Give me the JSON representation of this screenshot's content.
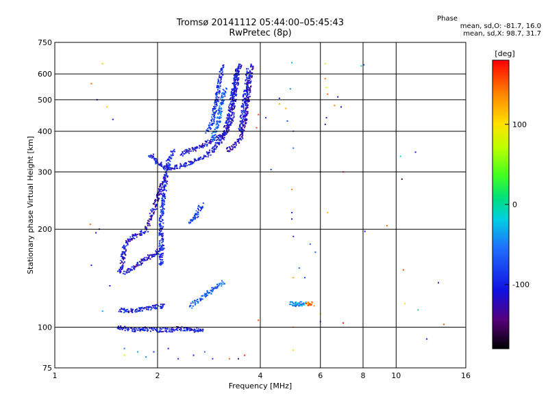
{
  "chart_data": {
    "type": "scatter",
    "title": "Tromsø 20141112 05:44:00–05:45:43",
    "subtitle": "RwPretec (8p)",
    "xlabel": "Frequency [MHz]",
    "ylabel": "Stationary phase Virtual Height [km]",
    "x_scale": "log",
    "y_scale": "log",
    "xlim": [
      1,
      16
    ],
    "ylim": [
      75,
      750
    ],
    "x_ticks": [
      1,
      2,
      4,
      6,
      8,
      10,
      16
    ],
    "x_tick_labels": [
      "1",
      "2",
      "4",
      "6",
      "8",
      "10",
      "16"
    ],
    "y_ticks": [
      75,
      100,
      200,
      300,
      400,
      500,
      600,
      750
    ],
    "y_tick_labels": [
      "75",
      "100",
      "200",
      "300",
      "400",
      "500",
      "600",
      "750"
    ],
    "grid": true,
    "phase_title": "Phase",
    "phase_stats": [
      "mean, sd,O: -81.7, 16.0",
      "mean, sd,X:  98.7, 31.7"
    ],
    "colorbar": {
      "label": "[deg]",
      "range": [
        -180,
        180
      ],
      "ticks": [
        100,
        0,
        -100
      ],
      "tick_labels": [
        "100",
        "0",
        "-100"
      ]
    },
    "colors": {
      "dominant": "#1414d8",
      "secondary": "#2a6cff",
      "cyan": "#00bfe0",
      "sparse": [
        "#ff9900",
        "#ffcc00",
        "#ff3300",
        "#00c8ff",
        "#66ff33",
        "#aa0088"
      ]
    },
    "traces": [
      {
        "name": "",
        "phase": -105,
        "points": [
          [
            1.52,
            100
          ],
          [
            1.6,
            99
          ],
          [
            1.7,
            98
          ],
          [
            1.8,
            99
          ],
          [
            1.9,
            98
          ],
          [
            2.0,
            98
          ],
          [
            2.1,
            98
          ],
          [
            2.2,
            98
          ],
          [
            2.3,
            99
          ],
          [
            2.5,
            98
          ],
          [
            2.6,
            98
          ],
          [
            2.75,
            98
          ]
        ]
      },
      {
        "name": "",
        "phase": -100,
        "points": [
          [
            1.55,
            113
          ],
          [
            1.65,
            112
          ],
          [
            1.75,
            113
          ],
          [
            1.85,
            114
          ],
          [
            1.95,
            115
          ],
          [
            2.05,
            116
          ],
          [
            2.1,
            116
          ]
        ]
      },
      {
        "name": "",
        "phase": -65,
        "points": [
          [
            2.5,
            116
          ],
          [
            2.6,
            120
          ],
          [
            2.7,
            123
          ],
          [
            2.8,
            127
          ],
          [
            3.0,
            134
          ],
          [
            3.15,
            138
          ]
        ]
      },
      {
        "name": "",
        "phase": -110,
        "points": [
          [
            1.55,
            147
          ],
          [
            1.58,
            160
          ],
          [
            1.6,
            175
          ],
          [
            1.65,
            185
          ],
          [
            1.72,
            192
          ],
          [
            1.8,
            195
          ],
          [
            1.87,
            197
          ]
        ]
      },
      {
        "name": "",
        "phase": -110,
        "points": [
          [
            1.6,
            147
          ],
          [
            1.7,
            153
          ],
          [
            1.8,
            160
          ],
          [
            1.9,
            165
          ],
          [
            2.0,
            170
          ],
          [
            2.08,
            177
          ]
        ]
      },
      {
        "name": "",
        "phase": -95,
        "points": [
          [
            2.05,
            155
          ],
          [
            2.05,
            180
          ],
          [
            2.05,
            210
          ],
          [
            2.07,
            240
          ],
          [
            2.1,
            270
          ],
          [
            2.12,
            300
          ],
          [
            2.15,
            320
          ],
          [
            2.2,
            340
          ],
          [
            2.25,
            350
          ]
        ]
      },
      {
        "name": "",
        "phase": -115,
        "points": [
          [
            1.85,
            200
          ],
          [
            1.9,
            215
          ],
          [
            1.95,
            230
          ],
          [
            2.0,
            250
          ],
          [
            2.05,
            270
          ],
          [
            2.1,
            290
          ]
        ]
      },
      {
        "name": "",
        "phase": -75,
        "points": [
          [
            2.5,
            210
          ],
          [
            2.55,
            215
          ],
          [
            2.6,
            220
          ],
          [
            2.65,
            230
          ],
          [
            2.7,
            240
          ]
        ]
      },
      {
        "name": "",
        "phase": -100,
        "points": [
          [
            1.9,
            340
          ],
          [
            1.95,
            330
          ],
          [
            2.0,
            320
          ],
          [
            2.05,
            315
          ],
          [
            2.1,
            310
          ],
          [
            2.2,
            308
          ],
          [
            2.3,
            312
          ],
          [
            2.45,
            318
          ],
          [
            2.6,
            325
          ],
          [
            2.75,
            335
          ],
          [
            2.9,
            350
          ],
          [
            3.05,
            370
          ],
          [
            3.15,
            400
          ],
          [
            3.25,
            450
          ],
          [
            3.3,
            500
          ],
          [
            3.35,
            550
          ],
          [
            3.4,
            600
          ],
          [
            3.45,
            640
          ]
        ]
      },
      {
        "name": "",
        "phase": -110,
        "points": [
          [
            2.35,
            340
          ],
          [
            2.5,
            350
          ],
          [
            2.7,
            360
          ],
          [
            2.9,
            375
          ],
          [
            3.1,
            390
          ],
          [
            3.2,
            400
          ],
          [
            3.3,
            440
          ],
          [
            3.35,
            500
          ],
          [
            3.4,
            560
          ],
          [
            3.45,
            620
          ],
          [
            3.5,
            645
          ]
        ]
      },
      {
        "name": "",
        "phase": -90,
        "points": [
          [
            2.8,
            400
          ],
          [
            2.9,
            430
          ],
          [
            2.95,
            470
          ],
          [
            3.0,
            520
          ],
          [
            3.05,
            580
          ],
          [
            3.1,
            640
          ]
        ]
      },
      {
        "name": "",
        "phase": -60,
        "points": [
          [
            2.9,
            380
          ],
          [
            3.0,
            420
          ],
          [
            3.05,
            460
          ],
          [
            3.1,
            500
          ],
          [
            3.15,
            540
          ]
        ]
      },
      {
        "name": "",
        "phase": -120,
        "points": [
          [
            3.2,
            350
          ],
          [
            3.35,
            360
          ],
          [
            3.5,
            380
          ],
          [
            3.6,
            420
          ],
          [
            3.65,
            480
          ],
          [
            3.7,
            540
          ],
          [
            3.75,
            600
          ],
          [
            3.8,
            645
          ]
        ]
      },
      {
        "name": "",
        "phase": -100,
        "points": [
          [
            3.5,
            400
          ],
          [
            3.55,
            450
          ],
          [
            3.6,
            500
          ],
          [
            3.65,
            560
          ],
          [
            3.7,
            620
          ]
        ]
      },
      {
        "name": "",
        "phase": -40,
        "points": [
          [
            4.9,
            118
          ],
          [
            5.0,
            118
          ],
          [
            5.1,
            118
          ],
          [
            5.2,
            117
          ],
          [
            5.3,
            118
          ],
          [
            5.45,
            118
          ]
        ]
      },
      {
        "name": "",
        "phase": 140,
        "points": [
          [
            5.5,
            118
          ],
          [
            5.6,
            118
          ],
          [
            5.7,
            117
          ]
        ]
      }
    ],
    "scattered_points": [
      [
        1.28,
        560,
        150
      ],
      [
        1.33,
        500,
        -130
      ],
      [
        1.38,
        645,
        110
      ],
      [
        1.42,
        475,
        110
      ],
      [
        1.48,
        435,
        -100
      ],
      [
        1.27,
        207,
        150
      ],
      [
        1.32,
        195,
        -110
      ],
      [
        1.35,
        200,
        -150
      ],
      [
        1.28,
        155,
        -100
      ],
      [
        1.45,
        134,
        -100
      ],
      [
        1.38,
        112,
        -40
      ],
      [
        1.6,
        86,
        -50
      ],
      [
        1.6,
        82,
        80
      ],
      [
        1.75,
        84,
        -40
      ],
      [
        1.85,
        81,
        -40
      ],
      [
        1.95,
        84,
        -90
      ],
      [
        2.15,
        86,
        -100
      ],
      [
        2.3,
        80,
        -100
      ],
      [
        2.55,
        82,
        -100
      ],
      [
        2.75,
        84,
        -60
      ],
      [
        2.9,
        80,
        -90
      ],
      [
        3.25,
        80,
        150
      ],
      [
        3.45,
        80,
        -130
      ],
      [
        3.6,
        82,
        170
      ],
      [
        3.95,
        105,
        160
      ],
      [
        3.9,
        410,
        160
      ],
      [
        3.95,
        450,
        160
      ],
      [
        4.15,
        440,
        -90
      ],
      [
        4.3,
        305,
        -80
      ],
      [
        4.55,
        505,
        -100
      ],
      [
        4.75,
        470,
        120
      ],
      [
        4.8,
        430,
        -70
      ],
      [
        4.95,
        650,
        -30
      ],
      [
        4.9,
        540,
        -40
      ],
      [
        5.0,
        400,
        -50
      ],
      [
        5.0,
        355,
        -60
      ],
      [
        4.95,
        265,
        140
      ],
      [
        4.95,
        225,
        -100
      ],
      [
        4.95,
        215,
        -120
      ],
      [
        5.0,
        190,
        -100
      ],
      [
        5.0,
        142,
        120
      ],
      [
        5.0,
        100,
        140
      ],
      [
        5.0,
        85,
        100
      ],
      [
        4.55,
        485,
        120
      ],
      [
        5.2,
        152,
        -60
      ],
      [
        5.4,
        142,
        -80
      ],
      [
        5.6,
        180,
        -60
      ],
      [
        5.8,
        170,
        -70
      ],
      [
        6.0,
        104,
        -70
      ],
      [
        6.0,
        110,
        80
      ],
      [
        6.0,
        300,
        -60
      ],
      [
        6.2,
        645,
        100
      ],
      [
        6.2,
        580,
        140
      ],
      [
        6.25,
        545,
        100
      ],
      [
        6.3,
        520,
        150
      ],
      [
        6.25,
        440,
        -120
      ],
      [
        6.2,
        420,
        -130
      ],
      [
        6.3,
        225,
        120
      ],
      [
        6.6,
        480,
        140
      ],
      [
        6.75,
        510,
        -120
      ],
      [
        6.9,
        475,
        -110
      ],
      [
        7.0,
        300,
        160
      ],
      [
        7.0,
        103,
        180
      ],
      [
        7.9,
        635,
        -20
      ],
      [
        8.05,
        640,
        -60
      ],
      [
        8.1,
        197,
        -110
      ],
      [
        9.4,
        205,
        150
      ],
      [
        10.3,
        335,
        -10
      ],
      [
        10.4,
        285,
        -150
      ],
      [
        10.5,
        150,
        160
      ],
      [
        10.6,
        118,
        100
      ],
      [
        11.4,
        345,
        -110
      ],
      [
        11.6,
        113,
        -20
      ],
      [
        12.3,
        92,
        -100
      ],
      [
        13.3,
        137,
        -110
      ],
      [
        13.8,
        102,
        150
      ]
    ]
  }
}
